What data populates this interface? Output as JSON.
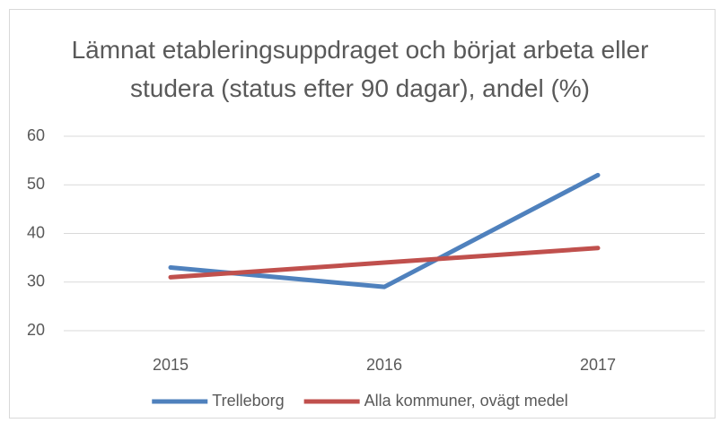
{
  "chart_data": {
    "type": "line",
    "title": "Lämnat etableringsuppdraget och börjat arbeta eller studera (status efter 90 dagar), andel (%)",
    "categories": [
      "2015",
      "2016",
      "2017"
    ],
    "series": [
      {
        "name": "Trelleborg",
        "color": "#4f81bd",
        "values": [
          33,
          29,
          52
        ]
      },
      {
        "name": "Alla kommuner, ovägt medel",
        "color": "#c0504d",
        "values": [
          31,
          34,
          37
        ]
      }
    ],
    "ylim": [
      20,
      60
    ],
    "yticks": [
      20,
      30,
      40,
      50,
      60
    ],
    "grid": true,
    "legend": "bottom"
  }
}
